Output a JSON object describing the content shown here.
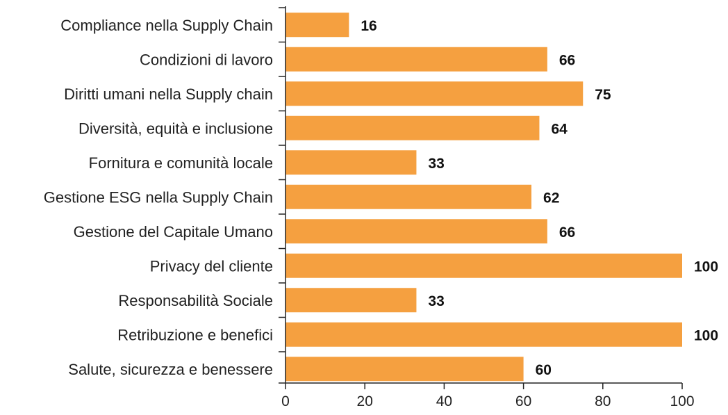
{
  "chart_data": {
    "type": "bar",
    "orientation": "horizontal",
    "categories": [
      "Compliance nella Supply Chain",
      "Condizioni di lavoro",
      "Diritti umani nella Supply chain",
      "Diversità, equità e inclusione",
      "Fornitura e comunità locale",
      "Gestione ESG nella Supply Chain",
      "Gestione del Capitale Umano",
      "Privacy del cliente",
      "Responsabilità Sociale",
      "Retribuzione e benefici",
      "Salute, sicurezza e benessere"
    ],
    "values": [
      16,
      66,
      75,
      64,
      33,
      62,
      66,
      100,
      33,
      100,
      60
    ],
    "value_labels": [
      "16",
      "66",
      "75",
      "64",
      "33",
      "62",
      "66",
      "100",
      "33",
      "100",
      "60"
    ],
    "xticks": [
      "0",
      "20",
      "40",
      "60",
      "80",
      "100"
    ],
    "xlim": [
      0,
      100
    ],
    "bar_color": "#F5A040",
    "grid": false,
    "title": "",
    "xlabel": "",
    "ylabel": ""
  }
}
